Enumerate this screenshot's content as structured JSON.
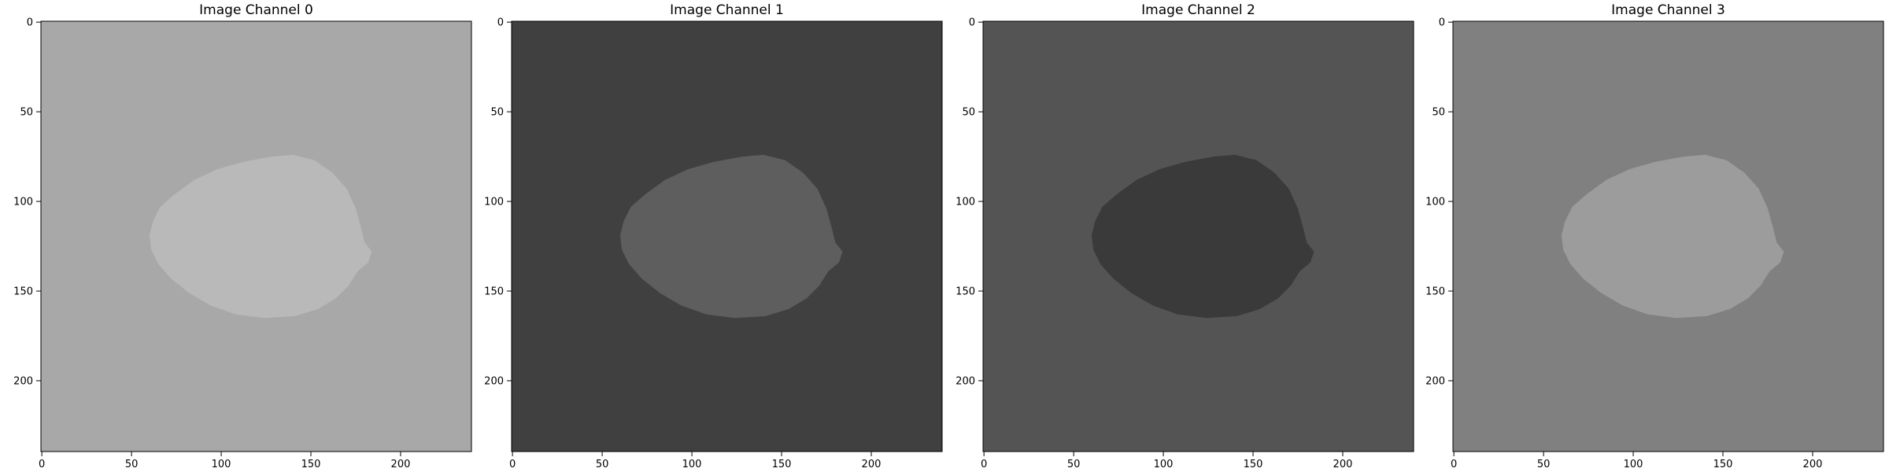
{
  "figure": {
    "panels": [
      {
        "title": "Image Channel 0",
        "background_color": "#a8a8a8",
        "brain_fill": "#b9b9b9",
        "tissue_lines": "#f2f2f2",
        "tissue_dark": "#3a3a3a",
        "rim_color": "#202020",
        "lesion_color": "#8a8a8a",
        "midline_color": "#e8e8e8",
        "appearance": "grey background, bright white-matter folds"
      },
      {
        "title": "Image Channel 1",
        "background_color": "#404040",
        "brain_fill": "#5e5e5e",
        "tissue_lines": "#9a9a9a",
        "tissue_dark": "#2c2c2c",
        "rim_color": "#c8c8c8",
        "lesion_color": "#151515",
        "midline_color": "#d6d6d6",
        "appearance": "dark background, bright rim and midline, dark lesion"
      },
      {
        "title": "Image Channel 2",
        "background_color": "#545454",
        "brain_fill": "#3a3a3a",
        "tissue_lines": "#e6e6e6",
        "tissue_dark": "#1e1e1e",
        "rim_color": "#0c0c0c",
        "lesion_color": "#8c8c8c",
        "midline_color": "#1a1a1a",
        "appearance": "mid-grey background, bright CSF lines"
      },
      {
        "title": "Image Channel 3",
        "background_color": "#808080",
        "brain_fill": "#9c9c9c",
        "tissue_lines": "#c6c6c6",
        "tissue_dark": "#6a6a6a",
        "rim_color": "#0e0e0e",
        "lesion_color": "#d8d8d8",
        "midline_color": "#5a5a5a",
        "appearance": "grey background, black rim, bright lesion"
      }
    ],
    "x_ticks": [
      "0",
      "50",
      "100",
      "150",
      "200"
    ],
    "y_ticks": [
      "0",
      "50",
      "100",
      "150",
      "200"
    ],
    "tick_values": [
      0,
      50,
      100,
      150,
      200
    ],
    "image_size": 240
  }
}
